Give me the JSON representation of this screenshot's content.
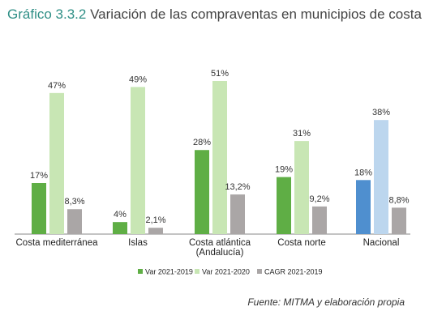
{
  "title_number": "Gráfico 3.3.2",
  "title_text": "Variación de las compraventas en municipios de costa",
  "source": "Fuente: MITMA y elaboración propia",
  "colors": {
    "var2019": "#5fae45",
    "var2020": "#c8e6b4",
    "cagr": "#aaa6a6",
    "national2019": "#4f8fcf",
    "national2020": "#bcd6ee",
    "title_accent": "#2f8f86"
  },
  "chart_data": {
    "type": "bar",
    "title": "Variación de las compraventas en municipios de costa",
    "categories": [
      {
        "lines": [
          "Costa mediterránea"
        ]
      },
      {
        "lines": [
          "Islas"
        ]
      },
      {
        "lines": [
          "Costa atlántica",
          "(Andalucía)"
        ]
      },
      {
        "lines": [
          "Costa norte"
        ]
      },
      {
        "lines": [
          "Nacional"
        ]
      }
    ],
    "series": [
      {
        "name": "Var 2021-2019",
        "values": [
          17,
          4,
          28,
          19,
          18
        ],
        "labels": [
          "17%",
          "4%",
          "28%",
          "19%",
          "18%"
        ]
      },
      {
        "name": "Var 2021-2020",
        "values": [
          47,
          49,
          51,
          31,
          38
        ],
        "labels": [
          "47%",
          "49%",
          "51%",
          "31%",
          "38%"
        ]
      },
      {
        "name": "CAGR 2021-2019",
        "values": [
          8.3,
          2.1,
          13.2,
          9.2,
          8.8
        ],
        "labels": [
          "8,3%",
          "2,1%",
          "13,2%",
          "9,2%",
          "8,8%"
        ]
      }
    ],
    "ylim": [
      0,
      51
    ],
    "legend_position": "bottom",
    "grid": false
  }
}
